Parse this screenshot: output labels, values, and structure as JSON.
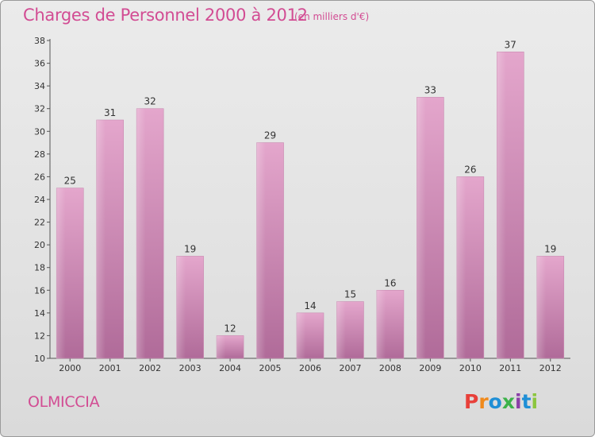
{
  "header": {
    "title": "Charges de Personnel 2000 à 2012",
    "subtitle": "(en milliers d'€)"
  },
  "footer": {
    "place": "OLMICCIA",
    "logo_letters": [
      "P",
      "r",
      "o",
      "x",
      "i",
      "t",
      "i"
    ],
    "logo_colors": [
      "#e8403a",
      "#f08a1c",
      "#1f8fd6",
      "#3db24a",
      "#8a3fa8",
      "#1f8fd6",
      "#8cc63f"
    ]
  },
  "chart_data": {
    "type": "bar",
    "categories": [
      "2000",
      "2001",
      "2002",
      "2003",
      "2004",
      "2005",
      "2006",
      "2007",
      "2008",
      "2009",
      "2010",
      "2011",
      "2012"
    ],
    "values": [
      25,
      31,
      32,
      19,
      12,
      29,
      14,
      15,
      16,
      33,
      26,
      37,
      19
    ],
    "ylim": [
      10,
      38
    ],
    "yticks": [
      10,
      12,
      14,
      16,
      18,
      20,
      22,
      24,
      26,
      28,
      30,
      32,
      34,
      36,
      38
    ],
    "bar_color": "#d98bb9",
    "grid": false,
    "legend": "none"
  }
}
